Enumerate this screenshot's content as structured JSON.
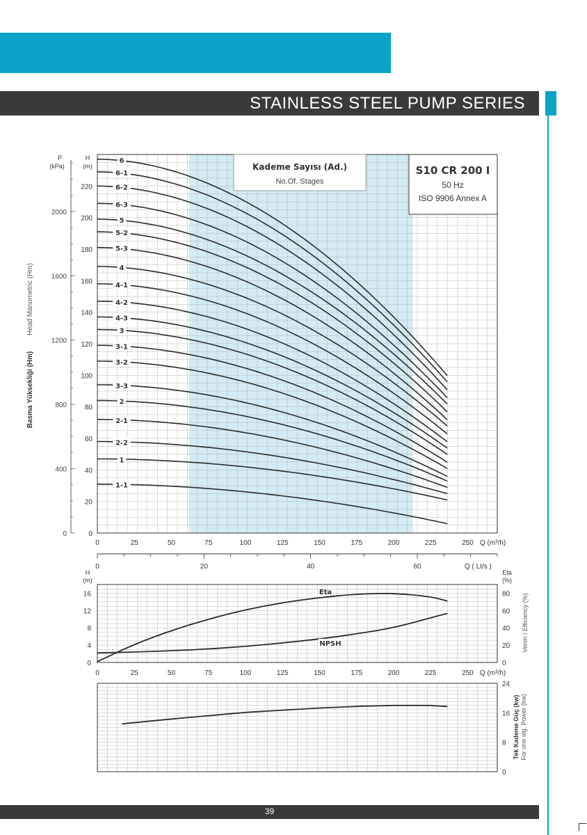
{
  "header": {
    "title": "STAINLESS STEEL PUMP SERIES"
  },
  "footer": {
    "page_number": "39"
  },
  "colors": {
    "accent": "#0aa3c7",
    "dark_band": "#3b3a38",
    "band_fill": "#d4ebf5",
    "curve": "#2b2b2b",
    "grid": "#b5b5b5",
    "grid_major": "#555555"
  },
  "chart_data": [
    {
      "type": "line",
      "name": "head-curves",
      "model_box": {
        "model": "S10 CR 200 I",
        "frequency": "50 Hz",
        "standard": "ISO 9906 Annex A"
      },
      "stages_box": {
        "title": "Kademe Sayısı (Ad.)",
        "subtitle": "No.Of. Stages"
      },
      "xlabel": "Q (m³/h)",
      "x_ticks": [
        "0",
        "25",
        "50",
        "75",
        "100",
        "125",
        "150",
        "175",
        "200",
        "225",
        "250"
      ],
      "xlim": [
        0,
        270
      ],
      "ylabel_h": "H\n(m)",
      "ylabel_h_lines": [
        "H",
        "(m)"
      ],
      "y_ticks_h": [
        "0",
        "20",
        "40",
        "60",
        "80",
        "100",
        "120",
        "140",
        "160",
        "180",
        "200",
        "220"
      ],
      "ylim": [
        0,
        240
      ],
      "ylabel_p_lines": [
        "P",
        "(kPa)"
      ],
      "y_ticks_p": [
        "0",
        "400",
        "800",
        "1200",
        "1600",
        "2000"
      ],
      "y_title_en": "Head Manometric (Hm)",
      "y_title_tr": "Basma Yüksekliği (Hm)",
      "secondary_x": {
        "label": "Q ( Lt/s )",
        "ticks": [
          "0",
          "20",
          "40",
          "60"
        ],
        "lim": [
          0,
          75
        ]
      },
      "allowed_range": [
        62,
        213
      ],
      "q_end": 236,
      "series": [
        {
          "name": "6",
          "h0": 237,
          "h_end": 100
        },
        {
          "name": "6-1",
          "h0": 229,
          "h_end": 96
        },
        {
          "name": "6-2",
          "h0": 220,
          "h_end": 91
        },
        {
          "name": "6-3",
          "h0": 209,
          "h_end": 86
        },
        {
          "name": "5",
          "h0": 199,
          "h_end": 82
        },
        {
          "name": "5-2",
          "h0": 191,
          "h_end": 77
        },
        {
          "name": "5-3",
          "h0": 181,
          "h_end": 72
        },
        {
          "name": "4",
          "h0": 169,
          "h_end": 68
        },
        {
          "name": "4-1",
          "h0": 158,
          "h_end": 63
        },
        {
          "name": "4-2",
          "h0": 147,
          "h_end": 58
        },
        {
          "name": "4-3",
          "h0": 137,
          "h_end": 54
        },
        {
          "name": "3",
          "h0": 129,
          "h_end": 50
        },
        {
          "name": "3-1",
          "h0": 119,
          "h_end": 45
        },
        {
          "name": "3-2",
          "h0": 109,
          "h_end": 41
        },
        {
          "name": "3-3",
          "h0": 94,
          "h_end": 36
        },
        {
          "name": "2",
          "h0": 84,
          "h_end": 33
        },
        {
          "name": "2-1",
          "h0": 72,
          "h_end": 29
        },
        {
          "name": "2-2",
          "h0": 58,
          "h_end": 25
        },
        {
          "name": "1",
          "h0": 47,
          "h_end": 21
        },
        {
          "name": "1-1",
          "h0": 31,
          "h_end": 6
        }
      ]
    },
    {
      "type": "line",
      "name": "eta-npsh",
      "xlabel": "Q (m³/h)",
      "x_ticks": [
        "0",
        "25",
        "50",
        "75",
        "100",
        "125",
        "150",
        "175",
        "200",
        "225",
        "250"
      ],
      "ylabel_h_lines": [
        "H",
        "(m)"
      ],
      "y_ticks_h": [
        "0",
        "4",
        "8",
        "12",
        "16"
      ],
      "ylim_h": [
        0,
        18
      ],
      "ylabel_eta_lines": [
        "Eta",
        "(%)"
      ],
      "y_ticks_eta": [
        "0",
        "20",
        "40",
        "60",
        "80"
      ],
      "ylim_eta": [
        0,
        90
      ],
      "y_title_right": "Verim / Efficiency  (%)",
      "series": [
        {
          "name": "Eta",
          "axis": "eta",
          "x": [
            0,
            25,
            50,
            75,
            100,
            125,
            150,
            175,
            200,
            225,
            236
          ],
          "y": [
            1,
            21,
            37,
            50,
            61,
            69,
            75,
            79,
            80,
            76,
            71
          ]
        },
        {
          "name": "NPSH",
          "axis": "h",
          "x": [
            0,
            25,
            50,
            75,
            100,
            125,
            150,
            175,
            200,
            225,
            236
          ],
          "y": [
            2.2,
            2.4,
            2.7,
            3.1,
            3.7,
            4.5,
            5.4,
            6.6,
            8.0,
            10.3,
            11.3
          ]
        }
      ]
    },
    {
      "type": "line",
      "name": "power",
      "ylim": [
        0,
        24
      ],
      "y_ticks": [
        "0",
        "8",
        "16",
        "24"
      ],
      "y_title_tr": "Tek Kademe Güç (kw)",
      "y_title_en": "For one stg. Power (kw)",
      "series": [
        {
          "name": "",
          "x": [
            17,
            50,
            100,
            150,
            180,
            200,
            225,
            236
          ],
          "y": [
            13.0,
            14.3,
            16.1,
            17.3,
            17.8,
            18.0,
            18.0,
            17.7
          ]
        }
      ]
    }
  ]
}
